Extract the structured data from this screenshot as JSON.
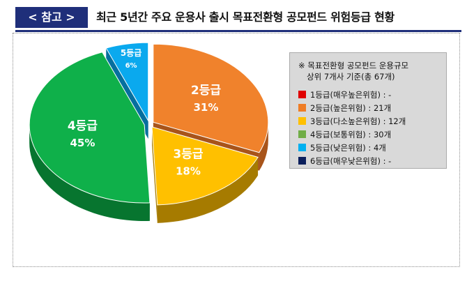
{
  "header": {
    "tag": "< 참고 >",
    "title": "최근 5년간 주요 운용사 출시 목표전환형 공모펀드 위험등급 현황"
  },
  "legend": {
    "note_line1": "※ 목표전환형 공모펀드 운용규모",
    "note_line2": "상위 7개사 기준(총 67개)",
    "items": [
      {
        "label": "1등급(매우높은위험) :   -",
        "color": "#e00000"
      },
      {
        "label": "2등급(높은위험) : 21개",
        "color": "#ef7d25"
      },
      {
        "label": "3등급(다소높은위험) : 12개",
        "color": "#ffc000"
      },
      {
        "label": "4등급(보통위험) : 30개",
        "color": "#70ad47"
      },
      {
        "label": "5등급(낮은위험) : 4개",
        "color": "#00b0f0"
      },
      {
        "label": "6등급(매우낮은위험) :   -",
        "color": "#0b1f5c"
      }
    ]
  },
  "chart_data": {
    "type": "pie",
    "total": 67,
    "slices": [
      {
        "name": "2등급",
        "value": 21,
        "percent": "31%",
        "color": "#f0822c",
        "side": "#a8541a"
      },
      {
        "name": "3등급",
        "value": 12,
        "percent": "18%",
        "color": "#ffc000",
        "side": "#a67b00"
      },
      {
        "name": "4등급",
        "value": 30,
        "percent": "45%",
        "color": "#0fb04a",
        "side": "#07752f"
      },
      {
        "name": "5등급",
        "value": 4,
        "percent": "6%",
        "color": "#0aa9ee",
        "side": "#066f9e"
      }
    ]
  }
}
